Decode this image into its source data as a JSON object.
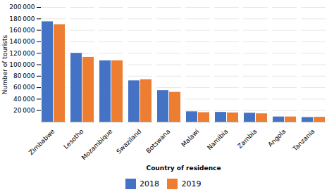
{
  "chart_data": {
    "type": "bar",
    "categories": [
      "Zimbabwe",
      "Lesotho",
      "Mozambique",
      "Swaziland",
      "Botswana",
      "Malawi",
      "Namibia",
      "Zambia",
      "Angola",
      "Tanzania"
    ],
    "series": [
      {
        "name": "2018",
        "color": "#4472C4",
        "values": [
          175000,
          120000,
          107000,
          72000,
          55000,
          18000,
          17000,
          15500,
          9000,
          8000
        ]
      },
      {
        "name": "2019",
        "color": "#ED7D31",
        "values": [
          170000,
          113000,
          107000,
          74000,
          52000,
          16500,
          16000,
          14500,
          9000,
          8500
        ]
      }
    ],
    "xlabel": "Country of residence",
    "ylabel": "Number of tourists",
    "ylim": [
      0,
      200000
    ],
    "yticks": [
      {
        "value": 20000,
        "label": "20 000"
      },
      {
        "value": 40000,
        "label": "40 000"
      },
      {
        "value": 60000,
        "label": "60 000"
      },
      {
        "value": 80000,
        "label": "80 000"
      },
      {
        "value": 100000,
        "label": "100 000"
      },
      {
        "value": 120000,
        "label": "120 000"
      },
      {
        "value": 140000,
        "label": "140 000"
      },
      {
        "value": 160000,
        "label": "160 000"
      },
      {
        "value": 180000,
        "label": "180 000"
      },
      {
        "value": 200000,
        "label": "200 000"
      }
    ],
    "grid": true,
    "legend": "bottom"
  }
}
